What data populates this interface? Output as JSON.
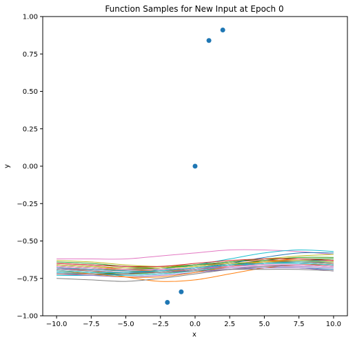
{
  "chart_data": {
    "type": "line",
    "title": "Function Samples for New Input at Epoch 0",
    "xlabel": "x",
    "ylabel": "y",
    "xlim": [
      -11,
      11
    ],
    "ylim": [
      -1.0,
      1.0
    ],
    "xticks": [
      -10.0,
      -7.5,
      -5.0,
      -2.5,
      0.0,
      2.5,
      5.0,
      7.5,
      10.0
    ],
    "xtick_labels": [
      "−10.0",
      "−7.5",
      "−5.0",
      "−2.5",
      "0.0",
      "2.5",
      "5.0",
      "7.5",
      "10.0"
    ],
    "yticks": [
      -1.0,
      -0.75,
      -0.5,
      -0.25,
      0.0,
      0.25,
      0.5,
      0.75,
      1.0
    ],
    "ytick_labels": [
      "−1.00",
      "−0.75",
      "−0.50",
      "−0.25",
      "0.00",
      "0.25",
      "0.50",
      "0.75",
      "1.00"
    ],
    "grid": false,
    "legend": "none",
    "points": {
      "color": "#1f77b4",
      "x": [
        -2,
        -1,
        0,
        1,
        2
      ],
      "y": [
        -0.91,
        -0.84,
        0.0,
        0.84,
        0.91
      ]
    },
    "sample_x": [
      -10,
      -7.5,
      -5,
      -2.5,
      0,
      2.5,
      5,
      7.5,
      10
    ],
    "series": [
      {
        "color": "#1f77b4",
        "values": [
          -0.7,
          -0.71,
          -0.72,
          -0.71,
          -0.7,
          -0.69,
          -0.68,
          -0.68,
          -0.69
        ]
      },
      {
        "color": "#ff7f0e",
        "values": [
          -0.68,
          -0.7,
          -0.74,
          -0.77,
          -0.76,
          -0.72,
          -0.68,
          -0.66,
          -0.66
        ]
      },
      {
        "color": "#2ca02c",
        "values": [
          -0.64,
          -0.65,
          -0.67,
          -0.68,
          -0.67,
          -0.65,
          -0.64,
          -0.64,
          -0.65
        ]
      },
      {
        "color": "#d62728",
        "values": [
          -0.66,
          -0.67,
          -0.68,
          -0.68,
          -0.66,
          -0.64,
          -0.63,
          -0.63,
          -0.64
        ]
      },
      {
        "color": "#9467bd",
        "values": [
          -0.71,
          -0.72,
          -0.73,
          -0.72,
          -0.7,
          -0.68,
          -0.67,
          -0.67,
          -0.68
        ]
      },
      {
        "color": "#8c564b",
        "values": [
          -0.68,
          -0.69,
          -0.7,
          -0.7,
          -0.69,
          -0.67,
          -0.66,
          -0.66,
          -0.67
        ]
      },
      {
        "color": "#e377c2",
        "values": [
          -0.62,
          -0.62,
          -0.62,
          -0.6,
          -0.58,
          -0.56,
          -0.56,
          -0.57,
          -0.59
        ]
      },
      {
        "color": "#7f7f7f",
        "values": [
          -0.75,
          -0.76,
          -0.77,
          -0.75,
          -0.72,
          -0.69,
          -0.67,
          -0.66,
          -0.67
        ]
      },
      {
        "color": "#bcbd22",
        "values": [
          -0.67,
          -0.68,
          -0.7,
          -0.71,
          -0.7,
          -0.67,
          -0.63,
          -0.61,
          -0.61
        ]
      },
      {
        "color": "#17becf",
        "values": [
          -0.73,
          -0.73,
          -0.72,
          -0.69,
          -0.66,
          -0.62,
          -0.58,
          -0.56,
          -0.57
        ]
      },
      {
        "color": "#1f77b4",
        "values": [
          -0.69,
          -0.7,
          -0.71,
          -0.7,
          -0.68,
          -0.66,
          -0.64,
          -0.63,
          -0.63
        ]
      },
      {
        "color": "#ff7f0e",
        "values": [
          -0.66,
          -0.67,
          -0.69,
          -0.7,
          -0.69,
          -0.67,
          -0.65,
          -0.64,
          -0.64
        ]
      },
      {
        "color": "#2ca02c",
        "values": [
          -0.7,
          -0.71,
          -0.72,
          -0.71,
          -0.69,
          -0.66,
          -0.63,
          -0.61,
          -0.61
        ]
      },
      {
        "color": "#d62728",
        "values": [
          -0.67,
          -0.68,
          -0.69,
          -0.68,
          -0.66,
          -0.64,
          -0.62,
          -0.62,
          -0.63
        ]
      },
      {
        "color": "#9467bd",
        "values": [
          -0.72,
          -0.73,
          -0.74,
          -0.73,
          -0.71,
          -0.69,
          -0.68,
          -0.68,
          -0.7
        ]
      },
      {
        "color": "#8c564b",
        "values": [
          -0.65,
          -0.66,
          -0.67,
          -0.67,
          -0.66,
          -0.65,
          -0.64,
          -0.64,
          -0.65
        ]
      },
      {
        "color": "#e377c2",
        "values": [
          -0.68,
          -0.7,
          -0.71,
          -0.7,
          -0.68,
          -0.66,
          -0.65,
          -0.65,
          -0.66
        ]
      },
      {
        "color": "#7f7f7f",
        "values": [
          -0.66,
          -0.67,
          -0.68,
          -0.69,
          -0.68,
          -0.66,
          -0.65,
          -0.65,
          -0.66
        ]
      },
      {
        "color": "#bcbd22",
        "values": [
          -0.63,
          -0.64,
          -0.66,
          -0.67,
          -0.66,
          -0.64,
          -0.62,
          -0.6,
          -0.59
        ]
      },
      {
        "color": "#17becf",
        "values": [
          -0.71,
          -0.72,
          -0.73,
          -0.72,
          -0.7,
          -0.67,
          -0.65,
          -0.64,
          -0.64
        ]
      },
      {
        "color": "#1f77b4",
        "values": [
          -0.68,
          -0.69,
          -0.7,
          -0.7,
          -0.68,
          -0.65,
          -0.61,
          -0.58,
          -0.58
        ]
      },
      {
        "color": "#ff7f0e",
        "values": [
          -0.7,
          -0.72,
          -0.74,
          -0.74,
          -0.71,
          -0.67,
          -0.64,
          -0.62,
          -0.63
        ]
      },
      {
        "color": "#2ca02c",
        "values": [
          -0.67,
          -0.68,
          -0.69,
          -0.68,
          -0.66,
          -0.64,
          -0.62,
          -0.62,
          -0.62
        ]
      },
      {
        "color": "#d62728",
        "values": [
          -0.65,
          -0.66,
          -0.67,
          -0.67,
          -0.65,
          -0.63,
          -0.62,
          -0.62,
          -0.63
        ]
      },
      {
        "color": "#9467bd",
        "values": [
          -0.69,
          -0.7,
          -0.71,
          -0.71,
          -0.69,
          -0.67,
          -0.66,
          -0.66,
          -0.67
        ]
      },
      {
        "color": "#8c564b",
        "values": [
          -0.72,
          -0.72,
          -0.72,
          -0.7,
          -0.68,
          -0.66,
          -0.65,
          -0.65,
          -0.66
        ]
      },
      {
        "color": "#e377c2",
        "values": [
          -0.67,
          -0.68,
          -0.69,
          -0.69,
          -0.68,
          -0.67,
          -0.66,
          -0.66,
          -0.67
        ]
      },
      {
        "color": "#7f7f7f",
        "values": [
          -0.69,
          -0.7,
          -0.71,
          -0.71,
          -0.7,
          -0.69,
          -0.69,
          -0.69,
          -0.7
        ]
      },
      {
        "color": "#bcbd22",
        "values": [
          -0.66,
          -0.67,
          -0.68,
          -0.68,
          -0.67,
          -0.65,
          -0.64,
          -0.63,
          -0.64
        ]
      },
      {
        "color": "#17becf",
        "values": [
          -0.7,
          -0.71,
          -0.71,
          -0.7,
          -0.68,
          -0.66,
          -0.65,
          -0.65,
          -0.66
        ]
      }
    ]
  }
}
